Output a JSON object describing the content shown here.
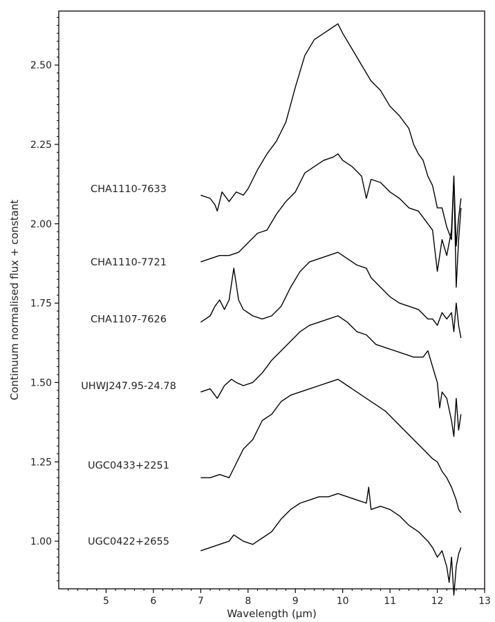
{
  "chart_data": {
    "type": "line",
    "xlabel": "Wavelength (µm)",
    "ylabel": "Continuum normalised flux + constant",
    "xlim": [
      4.0,
      13.0
    ],
    "ylim": [
      0.85,
      2.67
    ],
    "xticks": [
      5,
      6,
      7,
      8,
      9,
      10,
      11,
      12,
      13
    ],
    "yticks": [
      1.0,
      1.25,
      1.5,
      1.75,
      2.0,
      2.25,
      2.5
    ],
    "yticks_labels": [
      "1.00",
      "1.25",
      "1.50",
      "1.75",
      "2.00",
      "2.25",
      "2.50"
    ],
    "grid": false,
    "legend": "none",
    "line_color": "#000000",
    "series": [
      {
        "name": "CHA1110-7633",
        "label_y": 2.11,
        "x": [
          7.0,
          7.2,
          7.3,
          7.35,
          7.45,
          7.6,
          7.75,
          7.9,
          8.0,
          8.2,
          8.4,
          8.6,
          8.8,
          9.0,
          9.2,
          9.4,
          9.6,
          9.8,
          9.9,
          10.0,
          10.2,
          10.4,
          10.6,
          10.8,
          11.0,
          11.2,
          11.4,
          11.5,
          11.6,
          11.7,
          11.8,
          11.9,
          12.0,
          12.1,
          12.2,
          12.3,
          12.35,
          12.4,
          12.45,
          12.5
        ],
        "y": [
          2.09,
          2.08,
          2.06,
          2.04,
          2.1,
          2.07,
          2.1,
          2.09,
          2.11,
          2.17,
          2.22,
          2.26,
          2.32,
          2.43,
          2.53,
          2.58,
          2.6,
          2.62,
          2.63,
          2.6,
          2.55,
          2.5,
          2.45,
          2.42,
          2.37,
          2.34,
          2.3,
          2.25,
          2.22,
          2.2,
          2.15,
          2.12,
          2.05,
          2.05,
          1.99,
          1.95,
          2.15,
          1.93,
          2.02,
          2.08
        ]
      },
      {
        "name": "CHA1110-7721",
        "label_y": 1.88,
        "x": [
          7.0,
          7.2,
          7.4,
          7.6,
          7.8,
          8.0,
          8.2,
          8.4,
          8.6,
          8.8,
          9.0,
          9.2,
          9.4,
          9.6,
          9.8,
          9.9,
          10.0,
          10.2,
          10.4,
          10.5,
          10.6,
          10.8,
          11.0,
          11.2,
          11.4,
          11.6,
          11.8,
          11.9,
          12.0,
          12.1,
          12.2,
          12.3,
          12.35,
          12.4,
          12.45,
          12.5
        ],
        "y": [
          1.88,
          1.89,
          1.9,
          1.9,
          1.91,
          1.94,
          1.97,
          1.98,
          2.03,
          2.07,
          2.1,
          2.16,
          2.18,
          2.2,
          2.21,
          2.22,
          2.2,
          2.18,
          2.15,
          2.08,
          2.14,
          2.13,
          2.1,
          2.08,
          2.05,
          2.04,
          2.0,
          1.98,
          1.85,
          1.95,
          1.9,
          1.98,
          2.15,
          1.8,
          1.95,
          2.05
        ]
      },
      {
        "name": "CHA1107-7626",
        "label_y": 1.7,
        "x": [
          7.0,
          7.2,
          7.3,
          7.4,
          7.5,
          7.6,
          7.65,
          7.7,
          7.75,
          7.8,
          7.9,
          8.1,
          8.3,
          8.5,
          8.7,
          8.9,
          9.1,
          9.3,
          9.5,
          9.7,
          9.9,
          10.1,
          10.3,
          10.5,
          10.6,
          10.8,
          11.0,
          11.2,
          11.4,
          11.6,
          11.8,
          11.9,
          12.0,
          12.1,
          12.2,
          12.3,
          12.35,
          12.4,
          12.45,
          12.5
        ],
        "y": [
          1.69,
          1.71,
          1.74,
          1.76,
          1.73,
          1.76,
          1.81,
          1.86,
          1.81,
          1.76,
          1.73,
          1.71,
          1.7,
          1.71,
          1.74,
          1.8,
          1.85,
          1.88,
          1.89,
          1.9,
          1.91,
          1.89,
          1.87,
          1.86,
          1.83,
          1.8,
          1.77,
          1.75,
          1.74,
          1.73,
          1.7,
          1.7,
          1.68,
          1.72,
          1.7,
          1.72,
          1.66,
          1.75,
          1.68,
          1.64
        ]
      },
      {
        "name": "UHWJ247.95-24.78",
        "label_y": 1.49,
        "x": [
          7.0,
          7.2,
          7.35,
          7.5,
          7.65,
          7.75,
          7.9,
          8.1,
          8.3,
          8.5,
          8.7,
          8.9,
          9.1,
          9.3,
          9.5,
          9.7,
          9.9,
          10.1,
          10.3,
          10.5,
          10.7,
          10.9,
          11.1,
          11.3,
          11.5,
          11.7,
          11.8,
          11.9,
          12.0,
          12.05,
          12.1,
          12.2,
          12.3,
          12.35,
          12.4,
          12.45,
          12.5
        ],
        "y": [
          1.47,
          1.48,
          1.45,
          1.49,
          1.51,
          1.5,
          1.49,
          1.5,
          1.53,
          1.57,
          1.6,
          1.63,
          1.66,
          1.68,
          1.69,
          1.7,
          1.71,
          1.69,
          1.66,
          1.65,
          1.62,
          1.61,
          1.6,
          1.59,
          1.58,
          1.58,
          1.6,
          1.55,
          1.5,
          1.42,
          1.47,
          1.45,
          1.38,
          1.33,
          1.45,
          1.35,
          1.4
        ]
      },
      {
        "name": "UGC0433+2251",
        "label_y": 1.24,
        "x": [
          7.0,
          7.2,
          7.4,
          7.6,
          7.7,
          7.9,
          8.1,
          8.3,
          8.5,
          8.7,
          8.9,
          9.1,
          9.3,
          9.5,
          9.7,
          9.9,
          10.1,
          10.3,
          10.5,
          10.7,
          10.9,
          11.1,
          11.3,
          11.5,
          11.7,
          11.9,
          12.0,
          12.1,
          12.2,
          12.3,
          12.4,
          12.45,
          12.5
        ],
        "y": [
          1.2,
          1.2,
          1.21,
          1.2,
          1.23,
          1.29,
          1.32,
          1.38,
          1.4,
          1.44,
          1.46,
          1.47,
          1.48,
          1.49,
          1.5,
          1.51,
          1.49,
          1.47,
          1.45,
          1.43,
          1.41,
          1.38,
          1.35,
          1.32,
          1.29,
          1.26,
          1.25,
          1.22,
          1.2,
          1.17,
          1.13,
          1.1,
          1.09
        ]
      },
      {
        "name": "UGC0422+2655",
        "label_y": 1.0,
        "x": [
          7.0,
          7.2,
          7.4,
          7.6,
          7.7,
          7.9,
          8.1,
          8.3,
          8.5,
          8.7,
          8.9,
          9.1,
          9.3,
          9.5,
          9.7,
          9.9,
          10.1,
          10.3,
          10.5,
          10.55,
          10.6,
          10.8,
          11.0,
          11.2,
          11.4,
          11.6,
          11.8,
          11.9,
          12.0,
          12.1,
          12.2,
          12.25,
          12.3,
          12.35,
          12.4,
          12.45,
          12.5
        ],
        "y": [
          0.97,
          0.98,
          0.99,
          1.0,
          1.02,
          1.0,
          0.99,
          1.01,
          1.03,
          1.07,
          1.1,
          1.12,
          1.13,
          1.14,
          1.14,
          1.15,
          1.14,
          1.13,
          1.12,
          1.17,
          1.1,
          1.11,
          1.1,
          1.08,
          1.05,
          1.03,
          1.0,
          0.98,
          0.95,
          0.97,
          0.92,
          0.87,
          0.95,
          0.83,
          0.92,
          0.96,
          0.98
        ]
      }
    ]
  }
}
